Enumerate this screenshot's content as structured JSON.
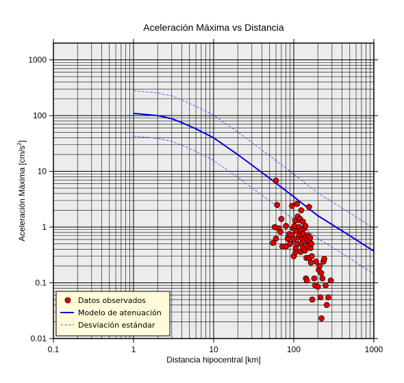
{
  "chart_data": {
    "type": "scatter",
    "title": "Aceleración Máxima vs Distancia",
    "xlabel": "Distancia hipocentral [km]",
    "ylabel_main": "Aceleración Máxima [cm/s",
    "ylabel_sup": "2",
    "ylabel_tail": "]",
    "x_scale": "log",
    "y_scale": "log",
    "xlim": [
      0.1,
      1000
    ],
    "ylim": [
      0.01,
      2000
    ],
    "grid": true,
    "legend_position": "bottom-left",
    "x_ticks": [
      {
        "value": 0.1,
        "label": "0.1"
      },
      {
        "value": 1,
        "label": "1"
      },
      {
        "value": 10,
        "label": "10"
      },
      {
        "value": 100,
        "label": "100"
      },
      {
        "value": 1000,
        "label": "1000"
      }
    ],
    "y_ticks": [
      {
        "value": 0.01,
        "label": "0.01"
      },
      {
        "value": 0.1,
        "label": "0.1"
      },
      {
        "value": 1,
        "label": "1"
      },
      {
        "value": 10,
        "label": "10"
      },
      {
        "value": 100,
        "label": "100"
      },
      {
        "value": 1000,
        "label": "1000"
      }
    ],
    "colors": {
      "observed": "#e00000",
      "model": "#0000dd",
      "stddev": "#3344ee",
      "plot_bg": "#ececec",
      "legend_bg": "#fffbd9"
    },
    "series": [
      {
        "name": "Datos observados",
        "kind": "scatter",
        "points": [
          [
            60,
            6.8
          ],
          [
            62,
            2.5
          ],
          [
            58,
            1.0
          ],
          [
            55,
            0.52
          ],
          [
            60,
            0.62
          ],
          [
            65,
            0.95
          ],
          [
            68,
            0.82
          ],
          [
            70,
            1.4
          ],
          [
            72,
            0.45
          ],
          [
            80,
            0.45
          ],
          [
            80,
            1.05
          ],
          [
            84,
            0.62
          ],
          [
            88,
            0.75
          ],
          [
            90,
            0.5
          ],
          [
            95,
            0.72
          ],
          [
            95,
            2.4
          ],
          [
            98,
            0.95
          ],
          [
            100,
            0.3
          ],
          [
            100,
            0.6
          ],
          [
            102,
            1.05
          ],
          [
            104,
            1.3
          ],
          [
            105,
            0.35
          ],
          [
            106,
            0.42
          ],
          [
            108,
            0.85
          ],
          [
            110,
            2.6
          ],
          [
            112,
            1.55
          ],
          [
            112,
            0.5
          ],
          [
            114,
            0.65
          ],
          [
            116,
            1.0
          ],
          [
            118,
            1.35
          ],
          [
            118,
            0.72
          ],
          [
            120,
            1.4
          ],
          [
            120,
            0.85
          ],
          [
            122,
            0.36
          ],
          [
            124,
            2.0
          ],
          [
            125,
            0.5
          ],
          [
            126,
            0.9
          ],
          [
            128,
            0.62
          ],
          [
            130,
            1.25
          ],
          [
            130,
            0.42
          ],
          [
            132,
            0.75
          ],
          [
            134,
            0.55
          ],
          [
            136,
            0.95
          ],
          [
            138,
            0.38
          ],
          [
            140,
            0.65
          ],
          [
            140,
            1.05
          ],
          [
            142,
            0.12
          ],
          [
            144,
            0.28
          ],
          [
            146,
            0.11
          ],
          [
            148,
            0.45
          ],
          [
            150,
            0.58
          ],
          [
            152,
            0.7
          ],
          [
            155,
            2.3
          ],
          [
            156,
            0.28
          ],
          [
            158,
            0.55
          ],
          [
            160,
            0.65
          ],
          [
            162,
            0.42
          ],
          [
            164,
            0.23
          ],
          [
            166,
            0.5
          ],
          [
            168,
            0.3
          ],
          [
            170,
            0.05
          ],
          [
            180,
            0.12
          ],
          [
            185,
            0.09
          ],
          [
            190,
            0.24
          ],
          [
            200,
            0.085
          ],
          [
            205,
            0.17
          ],
          [
            210,
            0.2
          ],
          [
            215,
            0.055
          ],
          [
            220,
            0.15
          ],
          [
            222,
            0.023
          ],
          [
            228,
            0.12
          ],
          [
            235,
            0.24
          ],
          [
            240,
            0.27
          ],
          [
            250,
            0.09
          ],
          [
            258,
            0.04
          ],
          [
            270,
            0.055
          ],
          [
            290,
            0.11
          ]
        ]
      },
      {
        "name": "Modelo de atenuación",
        "kind": "line",
        "points": [
          [
            1,
            110
          ],
          [
            2,
            100
          ],
          [
            3,
            88
          ],
          [
            4,
            75
          ],
          [
            6,
            58
          ],
          [
            10,
            40
          ],
          [
            20,
            20
          ],
          [
            50,
            7.5
          ],
          [
            100,
            3.5
          ],
          [
            200,
            1.6
          ],
          [
            500,
            0.7
          ],
          [
            1000,
            0.37
          ]
        ]
      },
      {
        "name": "Desviación estándar",
        "kind": "dashed",
        "upper": [
          [
            1,
            280
          ],
          [
            2,
            255
          ],
          [
            3,
            225
          ],
          [
            4,
            190
          ],
          [
            6,
            148
          ],
          [
            10,
            102
          ],
          [
            20,
            51
          ],
          [
            50,
            19
          ],
          [
            100,
            8.9
          ],
          [
            200,
            4.1
          ],
          [
            500,
            1.8
          ],
          [
            1000,
            0.94
          ]
        ],
        "lower": [
          [
            1,
            43
          ],
          [
            2,
            39
          ],
          [
            3,
            34.5
          ],
          [
            4,
            29.5
          ],
          [
            6,
            22.8
          ],
          [
            10,
            15.7
          ],
          [
            20,
            7.8
          ],
          [
            50,
            2.95
          ],
          [
            100,
            1.37
          ],
          [
            200,
            0.63
          ],
          [
            500,
            0.275
          ],
          [
            1000,
            0.145
          ]
        ]
      }
    ]
  }
}
